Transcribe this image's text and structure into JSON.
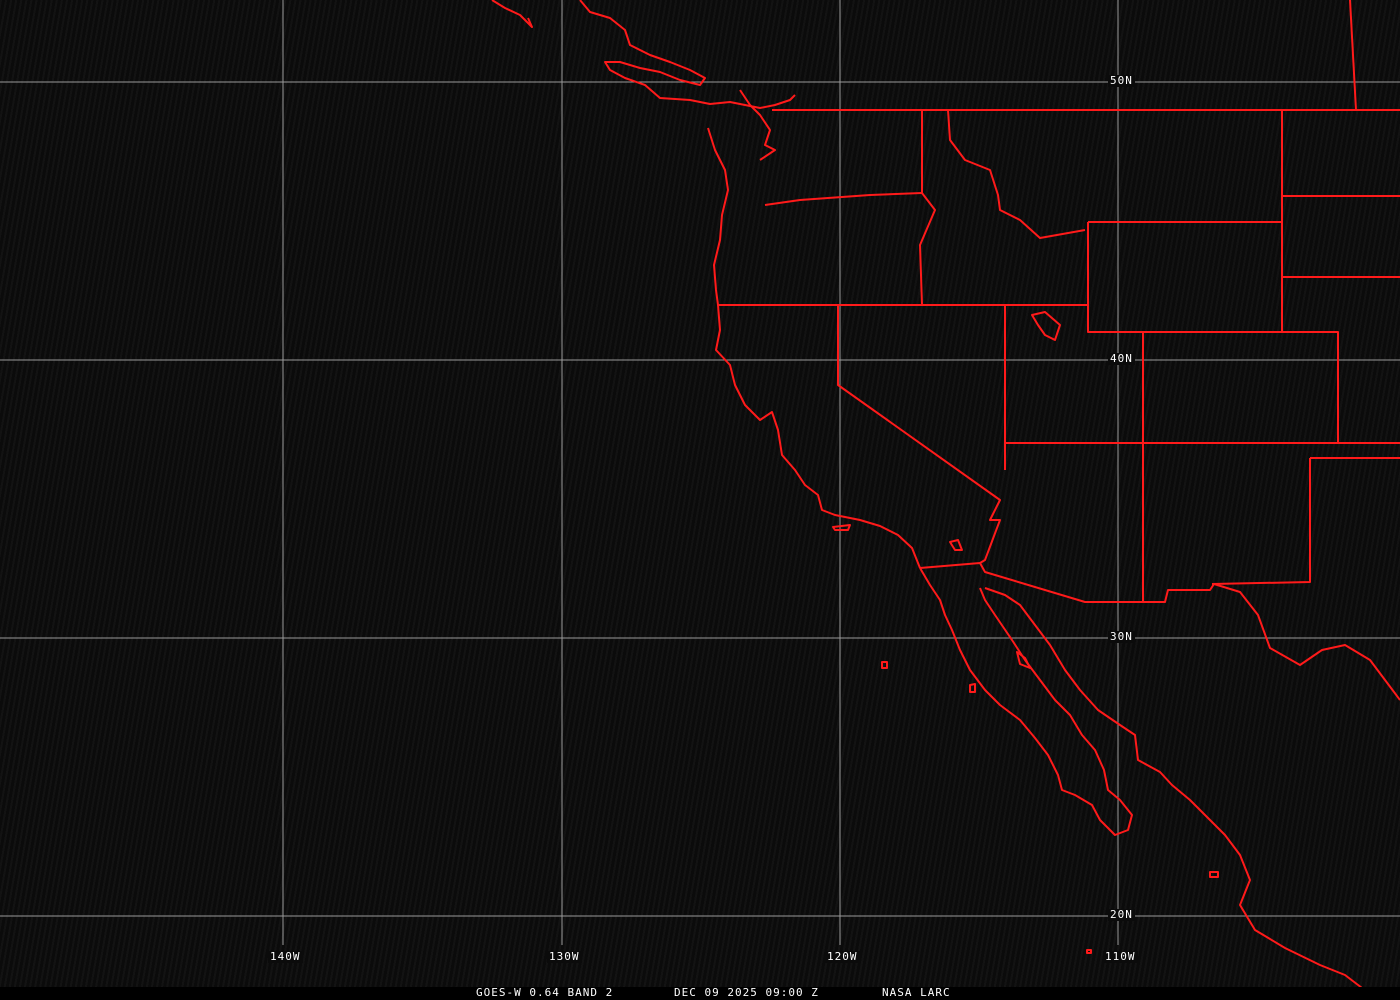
{
  "grid": {
    "lat_labels": [
      "50N",
      "40N",
      "30N",
      "20N"
    ],
    "lon_labels": [
      "140W",
      "130W",
      "120W",
      "110W"
    ],
    "grid_color": "#9a9a9a"
  },
  "overlay": {
    "boundary_color": "#ff1a1a"
  },
  "caption": {
    "satellite": "GOES-W 0.64 BAND 2",
    "datetime": "DEC 09 2025 09:00 Z",
    "source": "NASA LARC"
  }
}
